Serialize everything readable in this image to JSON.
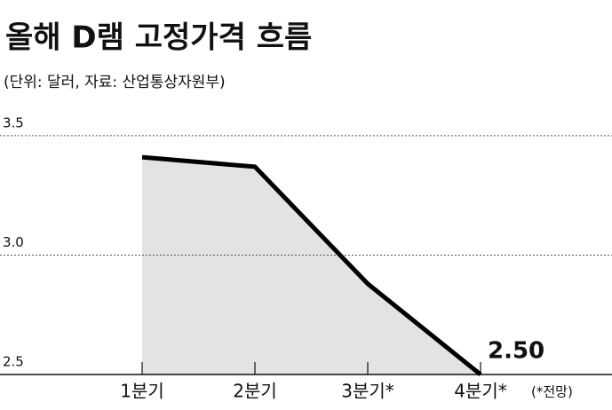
{
  "chart_data": {
    "type": "area",
    "title": "올해 D램 고정가격 흐름",
    "subtitle": "(단위: 달러, 자료: 산업통상자원부)",
    "annotation": "(*전망)",
    "categories": [
      "1분기",
      "2분기",
      "3분기*",
      "4분기*"
    ],
    "values": [
      3.41,
      3.37,
      2.88,
      2.5
    ],
    "value_labels": [
      null,
      null,
      null,
      "2.50"
    ],
    "color": "#000000",
    "fill": "#e3e3e3",
    "ylim": [
      2.5,
      3.6
    ],
    "yticks": [
      2.5,
      {
        "value": 3,
        "label": "3.0"
      },
      3.5
    ],
    "grid": true
  }
}
